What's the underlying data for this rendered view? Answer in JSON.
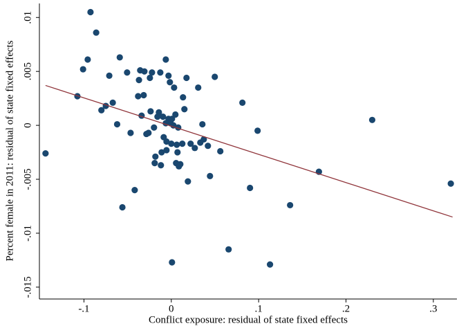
{
  "chart_data": {
    "type": "scatter",
    "xlabel": "Conflict exposure: residual of state fixed effects",
    "ylabel": "Percent female in 2011: residual of state fixed effects",
    "x": [
      -0.144,
      -0.0925,
      -0.086,
      -0.0957,
      -0.101,
      -0.1075,
      -0.071,
      -0.059,
      -0.0506,
      -0.075,
      -0.08,
      -0.067,
      -0.062,
      -0.0466,
      -0.0419,
      -0.056,
      -0.0356,
      -0.0308,
      -0.037,
      -0.038,
      -0.0316,
      -0.0245,
      -0.0221,
      -0.0126,
      -0.0063,
      -0.0032,
      -0.0016,
      0.0032,
      0.0174,
      0.0308,
      0.0498,
      0.0134,
      0.015,
      -0.034,
      -0.0237,
      -0.0142,
      -0.0095,
      -0.0158,
      -0.0032,
      0.0008,
      0.0047,
      -0.0063,
      -0.0008,
      0.0024,
      0.0079,
      -0.0198,
      -0.0261,
      -0.0285,
      -0.0087,
      -0.0055,
      0.0,
      -0.0111,
      -0.0055,
      0.0063,
      0.0126,
      -0.0182,
      -0.019,
      -0.0119,
      0.0055,
      0.0087,
      0.0103,
      0.0071,
      0.019,
      0.0221,
      0.0269,
      0.0332,
      0.0372,
      0.0419,
      0.0356,
      0.0443,
      0.0561,
      0.0814,
      0.0988,
      0.0901,
      0.0656,
      0.0008,
      0.113,
      0.136,
      0.169,
      0.23,
      0.32
    ],
    "y": [
      -0.0026,
      0.0105,
      0.0086,
      0.0061,
      0.0052,
      0.0027,
      0.0046,
      0.0063,
      0.0049,
      0.0018,
      0.0014,
      0.0021,
      0.0001,
      -0.0007,
      -0.006,
      -0.0076,
      0.0051,
      0.005,
      0.0042,
      0.0027,
      0.0028,
      0.0044,
      0.0049,
      0.0049,
      0.0061,
      0.0046,
      0.004,
      0.0035,
      0.0044,
      0.0035,
      0.0045,
      0.0026,
      0.0015,
      0.0009,
      0.0013,
      0.0012,
      0.0008,
      0.0008,
      0.0006,
      0.0006,
      0.001,
      0.0002,
      0.0002,
      0.0,
      -0.0002,
      -0.0002,
      -0.0007,
      -0.0008,
      -0.0011,
      -0.0015,
      -0.0017,
      -0.0025,
      -0.0023,
      -0.0018,
      -0.0017,
      -0.0029,
      -0.0035,
      -0.0037,
      -0.0035,
      -0.0038,
      -0.0036,
      -0.0025,
      -0.0052,
      -0.0017,
      -0.0021,
      -0.0016,
      -0.0013,
      -0.0019,
      0.0001,
      -0.0047,
      -0.0024,
      0.0021,
      -0.0005,
      -0.0058,
      -0.0115,
      -0.0127,
      -0.0129,
      -0.0074,
      -0.0043,
      0.0005,
      -0.0054
    ],
    "color": "#1a476f",
    "fit_line": {
      "x": [
        -0.144,
        0.322
      ],
      "y": [
        0.0037,
        -0.0085
      ],
      "color": "#90353b"
    },
    "xlim": [
      -0.151,
      0.327
    ],
    "ylim": [
      -0.0161,
      0.0113
    ],
    "xticks": [
      {
        "value": -0.1,
        "label": "-.1"
      },
      0,
      {
        "value": 0.1,
        "label": ".1"
      },
      {
        "value": 0.2,
        "label": ".2"
      },
      {
        "value": 0.3,
        "label": ".3"
      }
    ],
    "yticks": [
      {
        "value": -0.015,
        "label": "-.015"
      },
      {
        "value": -0.01,
        "label": "-.01"
      },
      {
        "value": -0.005,
        "label": "-.005"
      },
      0,
      {
        "value": 0.005,
        "label": ".005"
      },
      {
        "value": 0.01,
        "label": ".01"
      }
    ]
  }
}
